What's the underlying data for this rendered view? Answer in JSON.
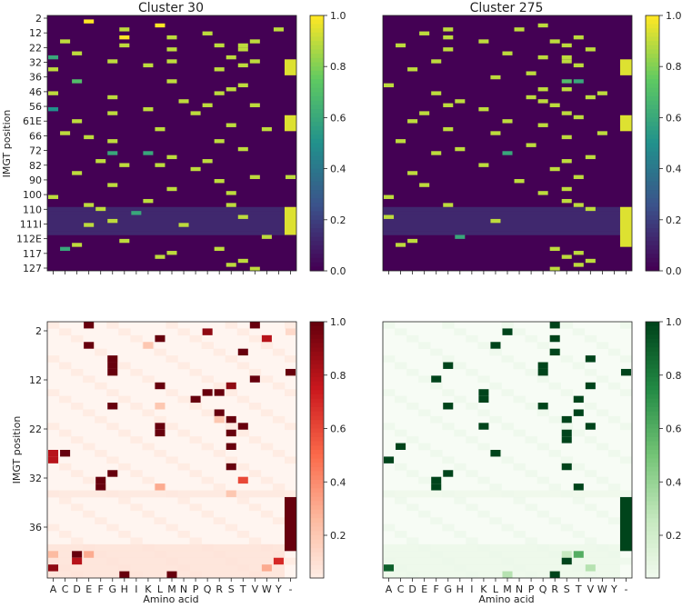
{
  "chart_data": [
    {
      "type": "heatmap",
      "title": "Cluster 30",
      "ylabel": "IMGT position",
      "xlabel": "",
      "colormap": "viridis",
      "colorbar_ticks": [
        "0.0",
        "0.2",
        "0.4",
        "0.6",
        "0.8",
        "1.0"
      ],
      "ytick_labels": [
        "2",
        "12",
        "22",
        "32",
        "36",
        "46",
        "56",
        "61E",
        "66",
        "72",
        "82",
        "90",
        "100",
        "110",
        "111I",
        "112E",
        "117",
        "127"
      ],
      "n_rows": 64,
      "x_categories": [
        "A",
        "C",
        "D",
        "E",
        "F",
        "G",
        "H",
        "I",
        "K",
        "L",
        "M",
        "N",
        "P",
        "Q",
        "R",
        "S",
        "T",
        "V",
        "W",
        "Y",
        "-"
      ],
      "show_x_labels": false,
      "cells": [
        [
          1,
          3,
          1
        ],
        [
          2,
          9,
          1
        ],
        [
          3,
          6,
          0.9
        ],
        [
          3,
          19,
          0.9
        ],
        [
          4,
          13,
          0.9
        ],
        [
          5,
          6,
          1
        ],
        [
          5,
          10,
          0.9
        ],
        [
          6,
          1,
          0.9
        ],
        [
          6,
          17,
          0.9
        ],
        [
          7,
          6,
          0.9
        ],
        [
          7,
          14,
          0.9
        ],
        [
          7,
          16,
          0.9
        ],
        [
          8,
          10,
          0.9
        ],
        [
          8,
          16,
          0.9
        ],
        [
          9,
          2,
          0.9
        ],
        [
          10,
          0,
          0.6
        ],
        [
          10,
          15,
          0.9
        ],
        [
          11,
          5,
          0.9
        ],
        [
          11,
          10,
          0.9
        ],
        [
          11,
          17,
          0.9
        ],
        [
          12,
          8,
          0.9
        ],
        [
          12,
          16,
          0.9
        ],
        [
          13,
          0,
          0.9
        ],
        [
          13,
          14,
          0.9
        ],
        [
          16,
          2,
          0.7
        ],
        [
          16,
          10,
          0.9
        ],
        [
          17,
          16,
          0.9
        ],
        [
          18,
          15,
          0.9
        ],
        [
          19,
          0,
          0.9
        ],
        [
          19,
          14,
          0.9
        ],
        [
          20,
          5,
          0.9
        ],
        [
          21,
          11,
          0.9
        ],
        [
          22,
          13,
          0.9
        ],
        [
          22,
          17,
          0.9
        ],
        [
          23,
          0,
          0.5
        ],
        [
          23,
          8,
          0.9
        ],
        [
          24,
          5,
          0.9
        ],
        [
          24,
          12,
          0.9
        ],
        [
          26,
          2,
          0.9
        ],
        [
          27,
          15,
          0.9
        ],
        [
          28,
          9,
          0.9
        ],
        [
          28,
          18,
          0.9
        ],
        [
          29,
          1,
          0.9
        ],
        [
          30,
          3,
          0.9
        ],
        [
          31,
          5,
          0.9
        ],
        [
          31,
          14,
          0.9
        ],
        [
          33,
          16,
          0.9
        ],
        [
          34,
          5,
          0.6
        ],
        [
          34,
          8,
          0.6
        ],
        [
          35,
          10,
          0.9
        ],
        [
          36,
          4,
          0.9
        ],
        [
          36,
          13,
          0.9
        ],
        [
          37,
          6,
          0.9
        ],
        [
          37,
          9,
          0.9
        ],
        [
          38,
          12,
          0.9
        ],
        [
          39,
          2,
          0.9
        ],
        [
          40,
          17,
          0.9
        ],
        [
          40,
          20,
          0.9
        ],
        [
          41,
          14,
          0.9
        ],
        [
          42,
          5,
          0.9
        ],
        [
          43,
          10,
          0.9
        ],
        [
          44,
          15,
          0.9
        ],
        [
          45,
          0,
          0.9
        ],
        [
          46,
          8,
          0.9
        ],
        [
          47,
          3,
          0.9
        ],
        [
          47,
          15,
          0.9
        ],
        [
          48,
          4,
          0.9
        ],
        [
          49,
          7,
          0.6
        ],
        [
          50,
          16,
          0.9
        ],
        [
          51,
          5,
          0.9
        ],
        [
          52,
          3,
          0.9
        ],
        [
          52,
          11,
          0.9
        ],
        [
          55,
          18,
          0.9
        ],
        [
          56,
          6,
          0.9
        ],
        [
          57,
          2,
          0.9
        ],
        [
          58,
          1,
          0.6
        ],
        [
          58,
          14,
          0.9
        ],
        [
          59,
          10,
          0.9
        ],
        [
          60,
          9,
          0.9
        ],
        [
          61,
          16,
          0.9
        ],
        [
          62,
          15,
          0.9
        ],
        [
          63,
          17,
          0.9
        ]
      ],
      "column_bands": [
        {
          "col": 20,
          "row_start": 11,
          "row_end": 14,
          "value": 0.95
        },
        {
          "col": 20,
          "row_start": 25,
          "row_end": 28,
          "value": 0.95
        },
        {
          "col": 20,
          "row_start": 48,
          "row_end": 54,
          "value": 0.95
        }
      ],
      "faint_rows": [
        48,
        49,
        50,
        51,
        52,
        53,
        54
      ],
      "faint_row_value": 0.12
    },
    {
      "type": "heatmap",
      "title": "Cluster 275",
      "ylabel": "",
      "xlabel": "",
      "colormap": "viridis",
      "colorbar_ticks": [
        "0.0",
        "0.2",
        "0.4",
        "0.6",
        "0.8",
        "1.0"
      ],
      "n_rows": 64,
      "x_categories": [
        "A",
        "C",
        "D",
        "E",
        "F",
        "G",
        "H",
        "I",
        "K",
        "L",
        "M",
        "N",
        "P",
        "Q",
        "R",
        "S",
        "T",
        "V",
        "W",
        "Y",
        "-"
      ],
      "show_x_labels": false,
      "cells": [
        [
          2,
          13,
          0.9
        ],
        [
          3,
          5,
          0.9
        ],
        [
          3,
          11,
          0.9
        ],
        [
          4,
          3,
          0.9
        ],
        [
          5,
          5,
          0.9
        ],
        [
          5,
          16,
          0.9
        ],
        [
          6,
          8,
          0.9
        ],
        [
          6,
          14,
          0.9
        ],
        [
          7,
          1,
          0.9
        ],
        [
          7,
          15,
          0.9
        ],
        [
          8,
          5,
          0.9
        ],
        [
          8,
          17,
          0.9
        ],
        [
          9,
          10,
          0.9
        ],
        [
          10,
          13,
          0.9
        ],
        [
          10,
          15,
          0.9
        ],
        [
          11,
          4,
          0.9
        ],
        [
          11,
          15,
          0.9
        ],
        [
          12,
          16,
          0.9
        ],
        [
          13,
          2,
          0.9
        ],
        [
          14,
          12,
          0.9
        ],
        [
          15,
          9,
          0.9
        ],
        [
          16,
          15,
          0.7
        ],
        [
          16,
          16,
          0.6
        ],
        [
          17,
          0,
          0.9
        ],
        [
          18,
          13,
          0.9
        ],
        [
          18,
          15,
          0.9
        ],
        [
          19,
          4,
          0.9
        ],
        [
          19,
          18,
          0.9
        ],
        [
          20,
          12,
          0.9
        ],
        [
          20,
          17,
          0.9
        ],
        [
          21,
          6,
          0.9
        ],
        [
          21,
          13,
          0.9
        ],
        [
          22,
          5,
          0.9
        ],
        [
          22,
          14,
          0.9
        ],
        [
          23,
          8,
          0.9
        ],
        [
          24,
          3,
          0.9
        ],
        [
          24,
          15,
          0.9
        ],
        [
          25,
          16,
          0.9
        ],
        [
          26,
          2,
          0.9
        ],
        [
          26,
          10,
          0.9
        ],
        [
          27,
          13,
          0.9
        ],
        [
          28,
          5,
          0.9
        ],
        [
          29,
          9,
          0.9
        ],
        [
          29,
          18,
          0.9
        ],
        [
          30,
          15,
          0.9
        ],
        [
          31,
          1,
          0.9
        ],
        [
          32,
          12,
          0.9
        ],
        [
          33,
          6,
          0.9
        ],
        [
          34,
          4,
          0.9
        ],
        [
          34,
          10,
          0.6
        ],
        [
          35,
          17,
          0.9
        ],
        [
          36,
          15,
          0.9
        ],
        [
          37,
          8,
          0.9
        ],
        [
          38,
          14,
          0.9
        ],
        [
          39,
          2,
          0.9
        ],
        [
          40,
          16,
          0.9
        ],
        [
          41,
          11,
          0.9
        ],
        [
          42,
          3,
          0.9
        ],
        [
          43,
          15,
          0.9
        ],
        [
          44,
          13,
          0.9
        ],
        [
          45,
          0,
          0.9
        ],
        [
          46,
          15,
          0.9
        ],
        [
          47,
          5,
          0.9
        ],
        [
          47,
          16,
          0.9
        ],
        [
          48,
          17,
          0.9
        ],
        [
          50,
          0,
          0.9
        ],
        [
          51,
          9,
          0.9
        ],
        [
          55,
          6,
          0.6
        ],
        [
          56,
          2,
          0.9
        ],
        [
          57,
          1,
          0.9
        ],
        [
          58,
          14,
          0.9
        ],
        [
          59,
          16,
          0.9
        ],
        [
          60,
          15,
          0.9
        ],
        [
          61,
          17,
          0.9
        ],
        [
          62,
          16,
          0.9
        ],
        [
          63,
          14,
          0.9
        ]
      ],
      "column_bands": [
        {
          "col": 20,
          "row_start": 11,
          "row_end": 14,
          "value": 0.95
        },
        {
          "col": 20,
          "row_start": 25,
          "row_end": 28,
          "value": 0.95
        },
        {
          "col": 20,
          "row_start": 48,
          "row_end": 57,
          "value": 0.95
        }
      ],
      "faint_rows": [
        48,
        49,
        50,
        51,
        52,
        53,
        54
      ],
      "faint_row_value": 0.12
    },
    {
      "type": "heatmap",
      "title": "",
      "ylabel": "IMGT position",
      "xlabel": "Amino acid",
      "colormap": "reds",
      "colorbar_ticks": [
        "0.2",
        "0.4",
        "0.6",
        "0.8",
        "1.0"
      ],
      "ytick_labels": [
        "2",
        "12",
        "22",
        "32",
        "36"
      ],
      "n_rows": 38,
      "x_categories": [
        "A",
        "C",
        "D",
        "E",
        "F",
        "G",
        "H",
        "I",
        "K",
        "L",
        "M",
        "N",
        "P",
        "Q",
        "R",
        "S",
        "T",
        "V",
        "W",
        "Y",
        "-"
      ],
      "show_x_labels": true,
      "cells": [
        [
          0,
          3,
          1
        ],
        [
          0,
          17,
          1
        ],
        [
          1,
          13,
          0.9
        ],
        [
          1,
          20,
          0.12
        ],
        [
          2,
          9,
          1
        ],
        [
          2,
          18,
          0.8
        ],
        [
          3,
          3,
          1
        ],
        [
          3,
          8,
          0.2
        ],
        [
          4,
          16,
          1
        ],
        [
          5,
          5,
          1
        ],
        [
          6,
          5,
          1
        ],
        [
          7,
          5,
          1
        ],
        [
          7,
          20,
          1
        ],
        [
          8,
          17,
          1
        ],
        [
          9,
          9,
          1
        ],
        [
          9,
          15,
          0.9
        ],
        [
          10,
          14,
          1
        ],
        [
          10,
          13,
          1
        ],
        [
          11,
          12,
          1
        ],
        [
          12,
          5,
          1
        ],
        [
          12,
          9,
          0.2
        ],
        [
          13,
          14,
          1
        ],
        [
          14,
          15,
          1
        ],
        [
          14,
          14,
          0.2
        ],
        [
          15,
          9,
          1
        ],
        [
          15,
          16,
          1
        ],
        [
          16,
          9,
          1
        ],
        [
          16,
          15,
          1
        ],
        [
          18,
          15,
          1
        ],
        [
          19,
          1,
          1
        ],
        [
          19,
          0,
          0.8
        ],
        [
          20,
          0,
          0.8
        ],
        [
          21,
          15,
          1
        ],
        [
          22,
          5,
          1
        ],
        [
          23,
          4,
          1
        ],
        [
          23,
          16,
          0.6
        ],
        [
          24,
          4,
          1
        ],
        [
          24,
          9,
          0.3
        ],
        [
          25,
          15,
          0.2
        ],
        [
          34,
          2,
          1
        ],
        [
          34,
          0,
          0.25
        ],
        [
          34,
          3,
          0.3
        ],
        [
          35,
          2,
          0.8
        ],
        [
          35,
          19,
          0.7
        ],
        [
          36,
          0,
          0.9
        ],
        [
          36,
          18,
          0.3
        ],
        [
          37,
          6,
          1
        ],
        [
          37,
          10,
          1
        ]
      ],
      "column_bands": [
        {
          "col": 20,
          "row_start": 26,
          "row_end": 33,
          "value": 1.0
        }
      ],
      "background_level": 0.04,
      "shaded_row_groups": [
        {
          "row_start": 25,
          "row_end": 25,
          "value": 0.06
        },
        {
          "row_start": 33,
          "row_end": 37,
          "value": 0.08
        }
      ]
    },
    {
      "type": "heatmap",
      "title": "",
      "ylabel": "",
      "xlabel": "Amino acid",
      "colormap": "greens",
      "colorbar_ticks": [
        "0.2",
        "0.4",
        "0.6",
        "0.8",
        "1.0"
      ],
      "n_rows": 38,
      "x_categories": [
        "A",
        "C",
        "D",
        "E",
        "F",
        "G",
        "H",
        "I",
        "K",
        "L",
        "M",
        "N",
        "P",
        "Q",
        "R",
        "S",
        "T",
        "V",
        "W",
        "Y",
        "-"
      ],
      "show_x_labels": true,
      "cells": [
        [
          0,
          14,
          1
        ],
        [
          1,
          10,
          1
        ],
        [
          2,
          14,
          1
        ],
        [
          3,
          9,
          1
        ],
        [
          4,
          14,
          1
        ],
        [
          5,
          17,
          1
        ],
        [
          6,
          5,
          1
        ],
        [
          6,
          13,
          1
        ],
        [
          7,
          13,
          1
        ],
        [
          7,
          20,
          1
        ],
        [
          8,
          4,
          1
        ],
        [
          9,
          17,
          1
        ],
        [
          10,
          8,
          1
        ],
        [
          11,
          8,
          1
        ],
        [
          11,
          16,
          1
        ],
        [
          12,
          5,
          1
        ],
        [
          12,
          13,
          1
        ],
        [
          13,
          16,
          1
        ],
        [
          14,
          15,
          1
        ],
        [
          15,
          8,
          1
        ],
        [
          15,
          17,
          1
        ],
        [
          16,
          15,
          1
        ],
        [
          17,
          15,
          1
        ],
        [
          18,
          1,
          1
        ],
        [
          19,
          9,
          1
        ],
        [
          20,
          0,
          1
        ],
        [
          21,
          15,
          1
        ],
        [
          22,
          5,
          1
        ],
        [
          23,
          4,
          1
        ],
        [
          24,
          4,
          1
        ],
        [
          24,
          16,
          1
        ],
        [
          34,
          15,
          0.25
        ],
        [
          34,
          16,
          0.6
        ],
        [
          35,
          15,
          1
        ],
        [
          36,
          0,
          0.9
        ],
        [
          36,
          17,
          0.3
        ],
        [
          37,
          10,
          0.3
        ],
        [
          37,
          14,
          1
        ]
      ],
      "column_bands": [
        {
          "col": 20,
          "row_start": 26,
          "row_end": 33,
          "value": 1.0
        }
      ],
      "background_level": 0.04,
      "shaded_row_groups": [
        {
          "row_start": 25,
          "row_end": 25,
          "value": 0.05
        },
        {
          "row_start": 33,
          "row_end": 37,
          "value": 0.06
        }
      ]
    }
  ]
}
